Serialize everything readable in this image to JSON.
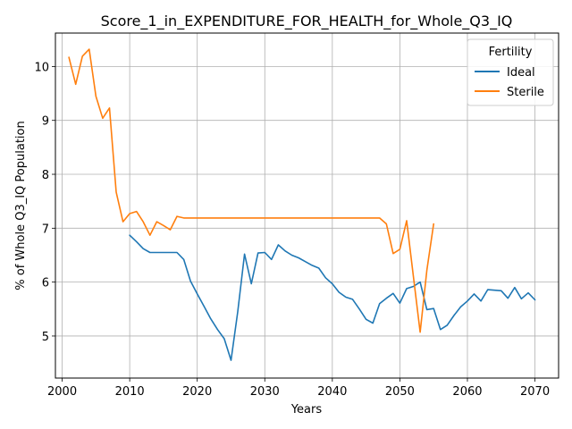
{
  "chart_data": {
    "type": "line",
    "title": "Score_1_in_EXPENDITURE_FOR_HEALTH_for_Whole_Q3_IQ",
    "xlabel": "Years",
    "ylabel": "% of Whole Q3_IQ Population",
    "xlim": [
      1999,
      2073.5
    ],
    "ylim": [
      4.22,
      10.62
    ],
    "xticks": [
      2000,
      2010,
      2020,
      2030,
      2040,
      2050,
      2060,
      2070
    ],
    "yticks": [
      5,
      6,
      7,
      8,
      9,
      10
    ],
    "grid": true,
    "legend": {
      "title": "Fertility",
      "placement": "top-right"
    },
    "series": [
      {
        "name": "Ideal",
        "color": "#1f77b4",
        "x": [
          2010,
          2011,
          2012,
          2013,
          2014,
          2015,
          2016,
          2017,
          2018,
          2019,
          2020,
          2021,
          2022,
          2023,
          2024,
          2025,
          2026,
          2027,
          2028,
          2029,
          2030,
          2031,
          2032,
          2033,
          2034,
          2035,
          2036,
          2037,
          2038,
          2039,
          2040,
          2041,
          2042,
          2043,
          2044,
          2045,
          2046,
          2047,
          2048,
          2049,
          2050,
          2051,
          2052,
          2053,
          2054,
          2055,
          2056,
          2057,
          2058,
          2059,
          2060,
          2061,
          2062,
          2063,
          2064,
          2065,
          2066,
          2067,
          2068,
          2069,
          2070
        ],
        "y": [
          6.87,
          6.75,
          6.62,
          6.55,
          6.55,
          6.55,
          6.55,
          6.55,
          6.42,
          6.02,
          5.78,
          5.55,
          5.32,
          5.12,
          4.95,
          4.55,
          5.45,
          6.52,
          5.97,
          6.54,
          6.55,
          6.42,
          6.69,
          6.58,
          6.5,
          6.45,
          6.38,
          6.31,
          6.26,
          6.08,
          5.97,
          5.81,
          5.72,
          5.68,
          5.5,
          5.31,
          5.24,
          5.6,
          5.7,
          5.79,
          5.61,
          5.88,
          5.92,
          6.0,
          5.49,
          5.51,
          5.12,
          5.2,
          5.38,
          5.54,
          5.65,
          5.78,
          5.65,
          5.86,
          5.85,
          5.84,
          5.7,
          5.9,
          5.69,
          5.8,
          5.67
        ]
      },
      {
        "name": "Sterile",
        "color": "#ff7f0e",
        "x": [
          2001,
          2002,
          2003,
          2004,
          2005,
          2006,
          2007,
          2008,
          2009,
          2010,
          2011,
          2012,
          2013,
          2014,
          2015,
          2016,
          2017,
          2018,
          2019,
          2020,
          2021,
          2022,
          2023,
          2024,
          2025,
          2026,
          2027,
          2028,
          2029,
          2030,
          2031,
          2032,
          2033,
          2034,
          2035,
          2036,
          2037,
          2038,
          2039,
          2040,
          2041,
          2042,
          2043,
          2044,
          2045,
          2046,
          2047,
          2048,
          2049,
          2050,
          2051,
          2052,
          2053,
          2054,
          2055
        ],
        "y": [
          10.17,
          9.67,
          10.19,
          10.32,
          9.45,
          9.04,
          9.23,
          7.67,
          7.12,
          7.27,
          7.31,
          7.12,
          6.87,
          7.12,
          7.05,
          6.97,
          7.22,
          7.19,
          7.19,
          7.19,
          7.19,
          7.19,
          7.19,
          7.19,
          7.19,
          7.19,
          7.19,
          7.19,
          7.19,
          7.19,
          7.19,
          7.19,
          7.19,
          7.19,
          7.19,
          7.19,
          7.19,
          7.19,
          7.19,
          7.19,
          7.19,
          7.19,
          7.19,
          7.19,
          7.19,
          7.19,
          7.19,
          7.08,
          6.53,
          6.61,
          7.14,
          6.11,
          5.07,
          6.22,
          7.08
        ]
      }
    ]
  }
}
